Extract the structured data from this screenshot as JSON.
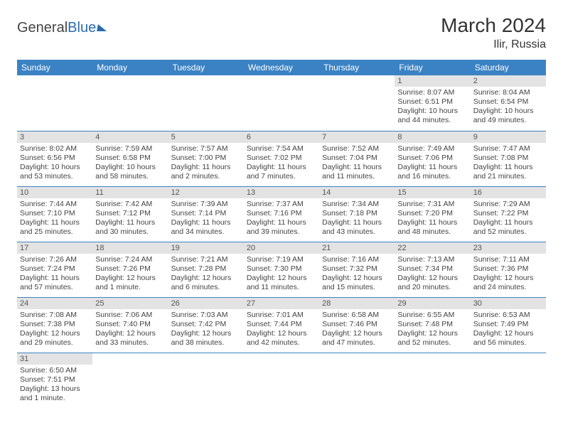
{
  "logo": {
    "part1": "General",
    "part2": "Blue"
  },
  "title": "March 2024",
  "location": "Ilir, Russia",
  "header_bg": "#3b82c4",
  "header_fg": "#ffffff",
  "daynum_bg": "#e3e3e3",
  "border_color": "#3b82c4",
  "text_color": "#444444",
  "font_family": "Arial",
  "title_fontsize": 28,
  "location_fontsize": 16,
  "header_fontsize": 12,
  "cell_fontsize": 10.5,
  "weekdays": [
    "Sunday",
    "Monday",
    "Tuesday",
    "Wednesday",
    "Thursday",
    "Friday",
    "Saturday"
  ],
  "labels": {
    "sunrise": "Sunrise:",
    "sunset": "Sunset:",
    "daylight": "Daylight:"
  },
  "weeks": [
    [
      null,
      null,
      null,
      null,
      null,
      {
        "n": "1",
        "sunrise": "8:07 AM",
        "sunset": "6:51 PM",
        "daylight": "10 hours and 44 minutes."
      },
      {
        "n": "2",
        "sunrise": "8:04 AM",
        "sunset": "6:54 PM",
        "daylight": "10 hours and 49 minutes."
      }
    ],
    [
      {
        "n": "3",
        "sunrise": "8:02 AM",
        "sunset": "6:56 PM",
        "daylight": "10 hours and 53 minutes."
      },
      {
        "n": "4",
        "sunrise": "7:59 AM",
        "sunset": "6:58 PM",
        "daylight": "10 hours and 58 minutes."
      },
      {
        "n": "5",
        "sunrise": "7:57 AM",
        "sunset": "7:00 PM",
        "daylight": "11 hours and 2 minutes."
      },
      {
        "n": "6",
        "sunrise": "7:54 AM",
        "sunset": "7:02 PM",
        "daylight": "11 hours and 7 minutes."
      },
      {
        "n": "7",
        "sunrise": "7:52 AM",
        "sunset": "7:04 PM",
        "daylight": "11 hours and 11 minutes."
      },
      {
        "n": "8",
        "sunrise": "7:49 AM",
        "sunset": "7:06 PM",
        "daylight": "11 hours and 16 minutes."
      },
      {
        "n": "9",
        "sunrise": "7:47 AM",
        "sunset": "7:08 PM",
        "daylight": "11 hours and 21 minutes."
      }
    ],
    [
      {
        "n": "10",
        "sunrise": "7:44 AM",
        "sunset": "7:10 PM",
        "daylight": "11 hours and 25 minutes."
      },
      {
        "n": "11",
        "sunrise": "7:42 AM",
        "sunset": "7:12 PM",
        "daylight": "11 hours and 30 minutes."
      },
      {
        "n": "12",
        "sunrise": "7:39 AM",
        "sunset": "7:14 PM",
        "daylight": "11 hours and 34 minutes."
      },
      {
        "n": "13",
        "sunrise": "7:37 AM",
        "sunset": "7:16 PM",
        "daylight": "11 hours and 39 minutes."
      },
      {
        "n": "14",
        "sunrise": "7:34 AM",
        "sunset": "7:18 PM",
        "daylight": "11 hours and 43 minutes."
      },
      {
        "n": "15",
        "sunrise": "7:31 AM",
        "sunset": "7:20 PM",
        "daylight": "11 hours and 48 minutes."
      },
      {
        "n": "16",
        "sunrise": "7:29 AM",
        "sunset": "7:22 PM",
        "daylight": "11 hours and 52 minutes."
      }
    ],
    [
      {
        "n": "17",
        "sunrise": "7:26 AM",
        "sunset": "7:24 PM",
        "daylight": "11 hours and 57 minutes."
      },
      {
        "n": "18",
        "sunrise": "7:24 AM",
        "sunset": "7:26 PM",
        "daylight": "12 hours and 1 minute."
      },
      {
        "n": "19",
        "sunrise": "7:21 AM",
        "sunset": "7:28 PM",
        "daylight": "12 hours and 6 minutes."
      },
      {
        "n": "20",
        "sunrise": "7:19 AM",
        "sunset": "7:30 PM",
        "daylight": "12 hours and 11 minutes."
      },
      {
        "n": "21",
        "sunrise": "7:16 AM",
        "sunset": "7:32 PM",
        "daylight": "12 hours and 15 minutes."
      },
      {
        "n": "22",
        "sunrise": "7:13 AM",
        "sunset": "7:34 PM",
        "daylight": "12 hours and 20 minutes."
      },
      {
        "n": "23",
        "sunrise": "7:11 AM",
        "sunset": "7:36 PM",
        "daylight": "12 hours and 24 minutes."
      }
    ],
    [
      {
        "n": "24",
        "sunrise": "7:08 AM",
        "sunset": "7:38 PM",
        "daylight": "12 hours and 29 minutes."
      },
      {
        "n": "25",
        "sunrise": "7:06 AM",
        "sunset": "7:40 PM",
        "daylight": "12 hours and 33 minutes."
      },
      {
        "n": "26",
        "sunrise": "7:03 AM",
        "sunset": "7:42 PM",
        "daylight": "12 hours and 38 minutes."
      },
      {
        "n": "27",
        "sunrise": "7:01 AM",
        "sunset": "7:44 PM",
        "daylight": "12 hours and 42 minutes."
      },
      {
        "n": "28",
        "sunrise": "6:58 AM",
        "sunset": "7:46 PM",
        "daylight": "12 hours and 47 minutes."
      },
      {
        "n": "29",
        "sunrise": "6:55 AM",
        "sunset": "7:48 PM",
        "daylight": "12 hours and 52 minutes."
      },
      {
        "n": "30",
        "sunrise": "6:53 AM",
        "sunset": "7:49 PM",
        "daylight": "12 hours and 56 minutes."
      }
    ],
    [
      {
        "n": "31",
        "sunrise": "6:50 AM",
        "sunset": "7:51 PM",
        "daylight": "13 hours and 1 minute."
      },
      null,
      null,
      null,
      null,
      null,
      null
    ]
  ]
}
